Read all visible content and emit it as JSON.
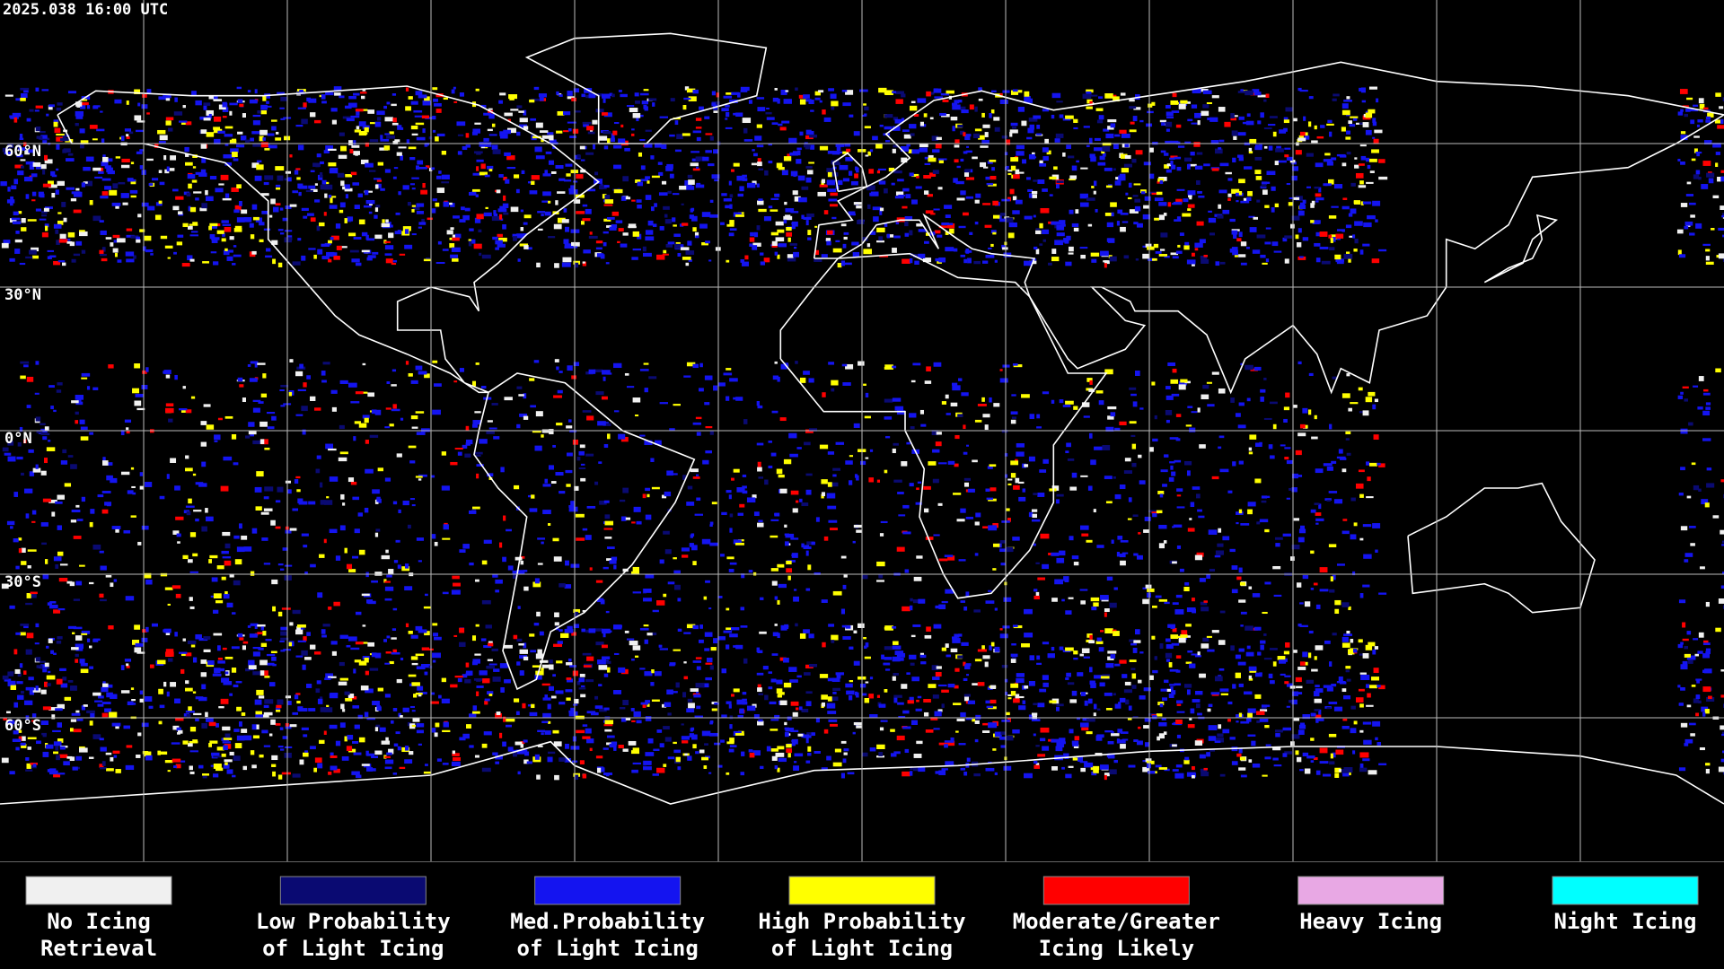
{
  "header": {
    "timestamp": "2025.038 16:00 UTC"
  },
  "map": {
    "latitude_labels": [
      "60°N",
      "30°N",
      "0°N",
      "30°S",
      "60°S"
    ]
  },
  "legend": {
    "items": [
      {
        "label": [
          "No Icing",
          "Retrieval"
        ],
        "color": "#f0f0f0"
      },
      {
        "label": [
          "Low Probability",
          "of Light Icing"
        ],
        "color": "#0a0a72"
      },
      {
        "label": [
          "Med.Probability",
          "of Light Icing"
        ],
        "color": "#1414f0"
      },
      {
        "label": [
          "High Probability",
          "of Light Icing"
        ],
        "color": "#ffff00"
      },
      {
        "label": [
          "Moderate/Greater",
          "Icing Likely"
        ],
        "color": "#ff0000"
      },
      {
        "label": [
          "Heavy Icing"
        ],
        "color": "#e8a8e4"
      },
      {
        "label": [
          "Night Icing"
        ],
        "color": "#00ffff"
      }
    ]
  }
}
